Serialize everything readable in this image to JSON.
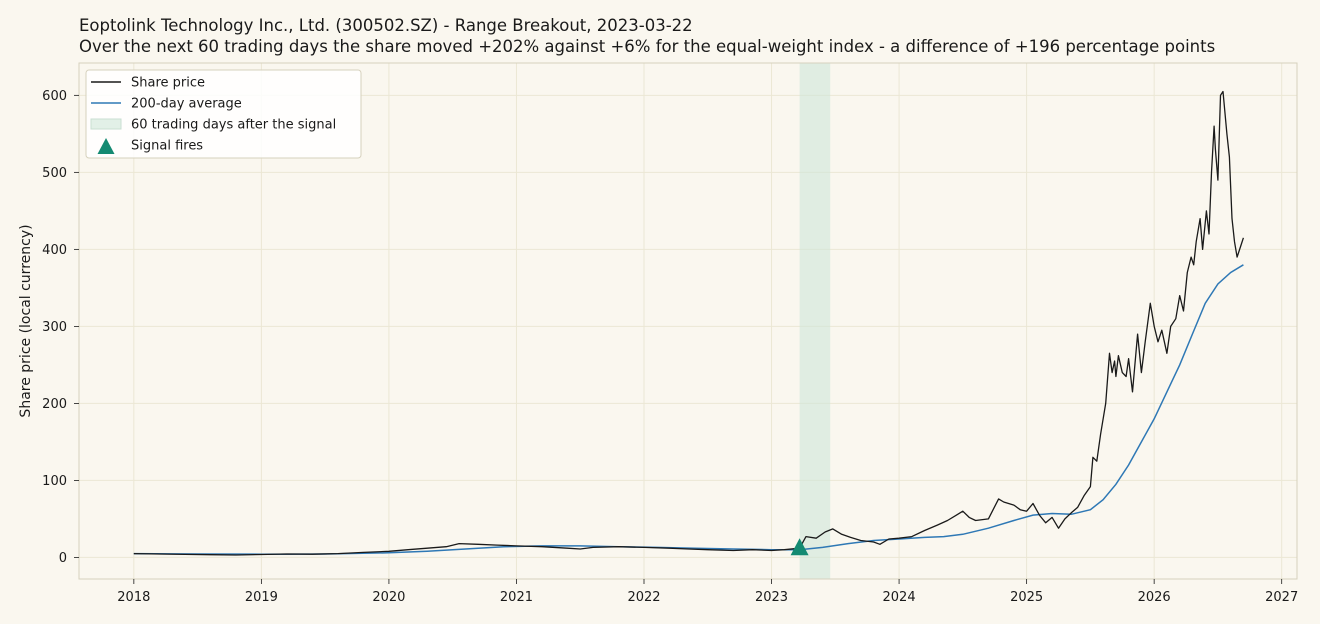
{
  "header": {
    "title": "Eoptolink Technology Inc., Ltd. (300502.SZ)  -  Range Breakout, 2023-03-22",
    "subtitle": "Over the next 60 trading days the share moved +202% against +6% for the equal-weight index  -  a difference of +196 percentage points"
  },
  "colors": {
    "background": "#faf7ef",
    "price": "#1a1a1a",
    "average": "#2e78b5",
    "window": "#cfe6d8",
    "signal": "#148a72",
    "grid": "#ebe7d4"
  },
  "chart_data": {
    "type": "line",
    "ylabel": "Share price (local currency)",
    "xlabel": "",
    "xlim": [
      2017.57,
      2027.12
    ],
    "ylim": [
      -28,
      642
    ],
    "x_ticks": [
      "2018",
      "2019",
      "2020",
      "2021",
      "2022",
      "2023",
      "2024",
      "2025",
      "2026",
      "2027"
    ],
    "y_ticks": [
      "0",
      "100",
      "200",
      "300",
      "400",
      "500",
      "600"
    ],
    "grid": true,
    "legend_position": "top-left",
    "legend": [
      "Share price",
      "200-day average",
      "60 trading days after the signal",
      "Signal fires"
    ],
    "signal": {
      "date": "2023-03-22",
      "x": 2023.22,
      "y": 12
    },
    "window": {
      "start": "2023-03-22",
      "end": "2023-06-16",
      "x0": 2023.22,
      "x1": 2023.46
    },
    "series": [
      {
        "name": "Share price",
        "x": [
          2018.0,
          2018.2,
          2018.4,
          2018.6,
          2018.8,
          2019.0,
          2019.2,
          2019.4,
          2019.6,
          2019.8,
          2020.0,
          2020.15,
          2020.3,
          2020.45,
          2020.55,
          2020.7,
          2020.85,
          2021.0,
          2021.2,
          2021.4,
          2021.5,
          2021.6,
          2021.8,
          2022.0,
          2022.2,
          2022.35,
          2022.5,
          2022.7,
          2022.85,
          2023.0,
          2023.1,
          2023.22,
          2023.27,
          2023.35,
          2023.42,
          2023.48,
          2023.55,
          2023.62,
          2023.7,
          2023.8,
          2023.85,
          2023.92,
          2024.0,
          2024.1,
          2024.2,
          2024.3,
          2024.38,
          2024.45,
          2024.5,
          2024.55,
          2024.6,
          2024.7,
          2024.78,
          2024.82,
          2024.9,
          2024.95,
          2025.0,
          2025.05,
          2025.1,
          2025.15,
          2025.2,
          2025.25,
          2025.3,
          2025.35,
          2025.4,
          2025.45,
          2025.5,
          2025.52,
          2025.55,
          2025.58,
          2025.62,
          2025.65,
          2025.67,
          2025.69,
          2025.7,
          2025.72,
          2025.75,
          2025.78,
          2025.8,
          2025.83,
          2025.87,
          2025.9,
          2025.93,
          2025.97,
          2026.0,
          2026.03,
          2026.06,
          2026.1,
          2026.13,
          2026.17,
          2026.2,
          2026.23,
          2026.26,
          2026.29,
          2026.31,
          2026.33,
          2026.36,
          2026.38,
          2026.41,
          2026.43,
          2026.45,
          2026.47,
          2026.48,
          2026.5,
          2026.52,
          2026.54,
          2026.57,
          2026.59,
          2026.61,
          2026.63,
          2026.65,
          2026.68,
          2026.7
        ],
        "values": [
          5,
          4.5,
          4,
          3.5,
          3.2,
          3.8,
          4.5,
          4.2,
          5,
          6.5,
          8,
          10,
          12,
          14,
          18,
          17,
          16,
          15,
          14,
          12,
          11,
          13,
          14,
          13,
          12,
          11,
          10,
          9,
          10,
          9,
          10,
          12,
          27,
          25,
          33,
          37,
          30,
          26,
          22,
          20,
          17,
          24,
          25,
          27,
          35,
          42,
          48,
          55,
          60,
          52,
          48,
          50,
          76,
          72,
          68,
          62,
          60,
          70,
          55,
          45,
          52,
          38,
          50,
          58,
          65,
          80,
          92,
          130,
          125,
          160,
          200,
          265,
          240,
          255,
          235,
          262,
          240,
          235,
          258,
          215,
          290,
          240,
          280,
          330,
          300,
          280,
          295,
          265,
          300,
          310,
          340,
          320,
          370,
          390,
          380,
          410,
          440,
          400,
          450,
          420,
          500,
          560,
          530,
          490,
          600,
          605,
          550,
          520,
          440,
          410,
          390,
          405,
          415
        ]
      },
      {
        "name": "200-day average",
        "x": [
          2018.0,
          2018.5,
          2019.0,
          2019.5,
          2020.0,
          2020.3,
          2020.6,
          2020.9,
          2021.2,
          2021.5,
          2021.8,
          2022.1,
          2022.4,
          2022.7,
          2023.0,
          2023.22,
          2023.4,
          2023.6,
          2023.8,
          2024.0,
          2024.2,
          2024.35,
          2024.5,
          2024.7,
          2024.9,
          2025.05,
          2025.2,
          2025.35,
          2025.5,
          2025.6,
          2025.7,
          2025.8,
          2025.9,
          2026.0,
          2026.1,
          2026.2,
          2026.3,
          2026.4,
          2026.5,
          2026.6,
          2026.7
        ],
        "values": [
          5,
          4.5,
          4.2,
          4.5,
          6,
          8,
          11,
          14,
          15,
          15,
          14,
          13,
          12,
          11,
          10,
          10,
          13,
          18,
          22,
          24,
          26,
          27,
          30,
          38,
          48,
          55,
          57,
          56,
          62,
          75,
          95,
          120,
          150,
          180,
          215,
          250,
          290,
          330,
          355,
          370,
          380
        ]
      }
    ]
  }
}
